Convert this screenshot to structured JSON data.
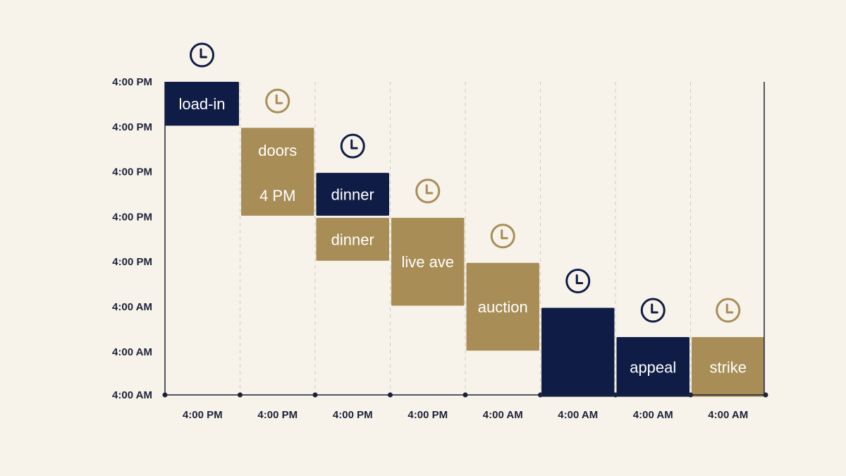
{
  "colors": {
    "background": "#f7f3eb",
    "navy": "#0f1c45",
    "gold": "#a88d56",
    "axis": "#1c2238",
    "grid": "#cfcac0"
  },
  "chart_data": {
    "type": "bar",
    "subtype": "staircase-gantt",
    "title": "",
    "xlabel": "",
    "ylabel": "",
    "grid": "vertical dashed",
    "x_ticks": [
      "4:00 PM",
      "4:00 PM",
      "4:00 PM",
      "4:00 PM",
      "4:00 AM",
      "4:00 AM",
      "4:00 AM",
      "4:00 AM"
    ],
    "y_ticks": [
      "4:00 PM",
      "4:00 PM",
      "4:00 PM",
      "4:00 PM",
      "4:00 PM",
      "4:00 AM",
      "4:00 AM",
      "4:00 AM"
    ],
    "bars": [
      {
        "column": 0,
        "row_start": 0,
        "row_end": 1,
        "color": "navy",
        "lines": [
          "load-in"
        ],
        "clock_icon": "clock-icon"
      },
      {
        "column": 1,
        "row_start": 1,
        "row_end": 3,
        "color": "gold",
        "lines": [
          "doors",
          "4 PM"
        ],
        "clock_icon": "clock-icon"
      },
      {
        "column": 2,
        "row_start": 2,
        "row_end": 3,
        "color": "navy",
        "lines": [
          "dinner"
        ],
        "clock_icon": "clock-icon"
      },
      {
        "column": 2,
        "row_start": 3,
        "row_end": 4,
        "color": "gold",
        "lines": [
          "dinner"
        ],
        "clock_icon": null
      },
      {
        "column": 3,
        "row_start": 3,
        "row_end": 5,
        "color": "gold",
        "lines": [
          "live ave"
        ],
        "clock_icon": "clock-icon"
      },
      {
        "column": 4,
        "row_start": 4,
        "row_end": 6,
        "color": "gold",
        "lines": [
          "auction"
        ],
        "clock_icon": "clock-icon"
      },
      {
        "column": 5,
        "row_start": 5,
        "row_end": 7,
        "color": "navy",
        "lines": [],
        "clock_icon": "clock-icon"
      },
      {
        "column": 6,
        "row_start": 5.65,
        "row_end": 7,
        "color": "navy",
        "lines": [
          "appeal"
        ],
        "clock_icon": "clock-icon"
      },
      {
        "column": 7,
        "row_start": 5.65,
        "row_end": 7,
        "color": "gold",
        "lines": [
          "strike"
        ],
        "clock_icon": "clock-icon"
      }
    ]
  }
}
